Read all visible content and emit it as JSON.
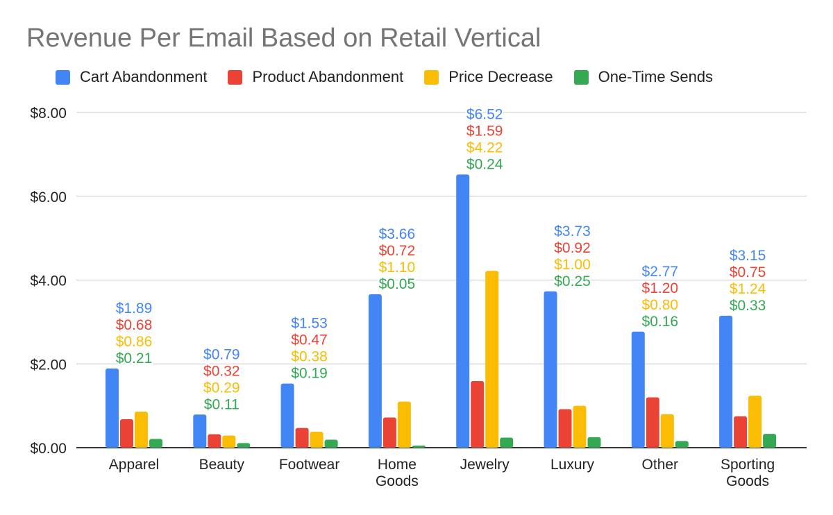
{
  "chart_data": {
    "type": "bar",
    "title": "Revenue Per Email Based on Retail Vertical",
    "xlabel": "",
    "ylabel": "",
    "ylim": [
      0,
      8
    ],
    "yticks": [
      "$0.00",
      "$2.00",
      "$4.00",
      "$6.00",
      "$8.00"
    ],
    "ytick_values": [
      0,
      2,
      4,
      6,
      8
    ],
    "grid": true,
    "legend_position": "top",
    "categories": [
      [
        "Apparel"
      ],
      [
        "Beauty"
      ],
      [
        "Footwear"
      ],
      [
        "Home",
        "Goods"
      ],
      [
        "Jewelry"
      ],
      [
        "Luxury"
      ],
      [
        "Other"
      ],
      [
        "Sporting",
        "Goods"
      ]
    ],
    "series": [
      {
        "name": "Cart Abandonment",
        "color": "#4285f4",
        "values": [
          1.89,
          0.79,
          1.53,
          3.66,
          6.52,
          3.73,
          2.77,
          3.15
        ]
      },
      {
        "name": "Product Abandonment",
        "color": "#ea4335",
        "values": [
          0.68,
          0.32,
          0.47,
          0.72,
          1.59,
          0.92,
          1.2,
          0.75
        ]
      },
      {
        "name": "Price Decrease",
        "color": "#fbbc04",
        "values": [
          0.86,
          0.29,
          0.38,
          1.1,
          4.22,
          1.0,
          0.8,
          1.24
        ]
      },
      {
        "name": "One-Time Sends",
        "color": "#34a853",
        "values": [
          0.21,
          0.11,
          0.19,
          0.05,
          0.24,
          0.25,
          0.16,
          0.33
        ]
      }
    ]
  }
}
